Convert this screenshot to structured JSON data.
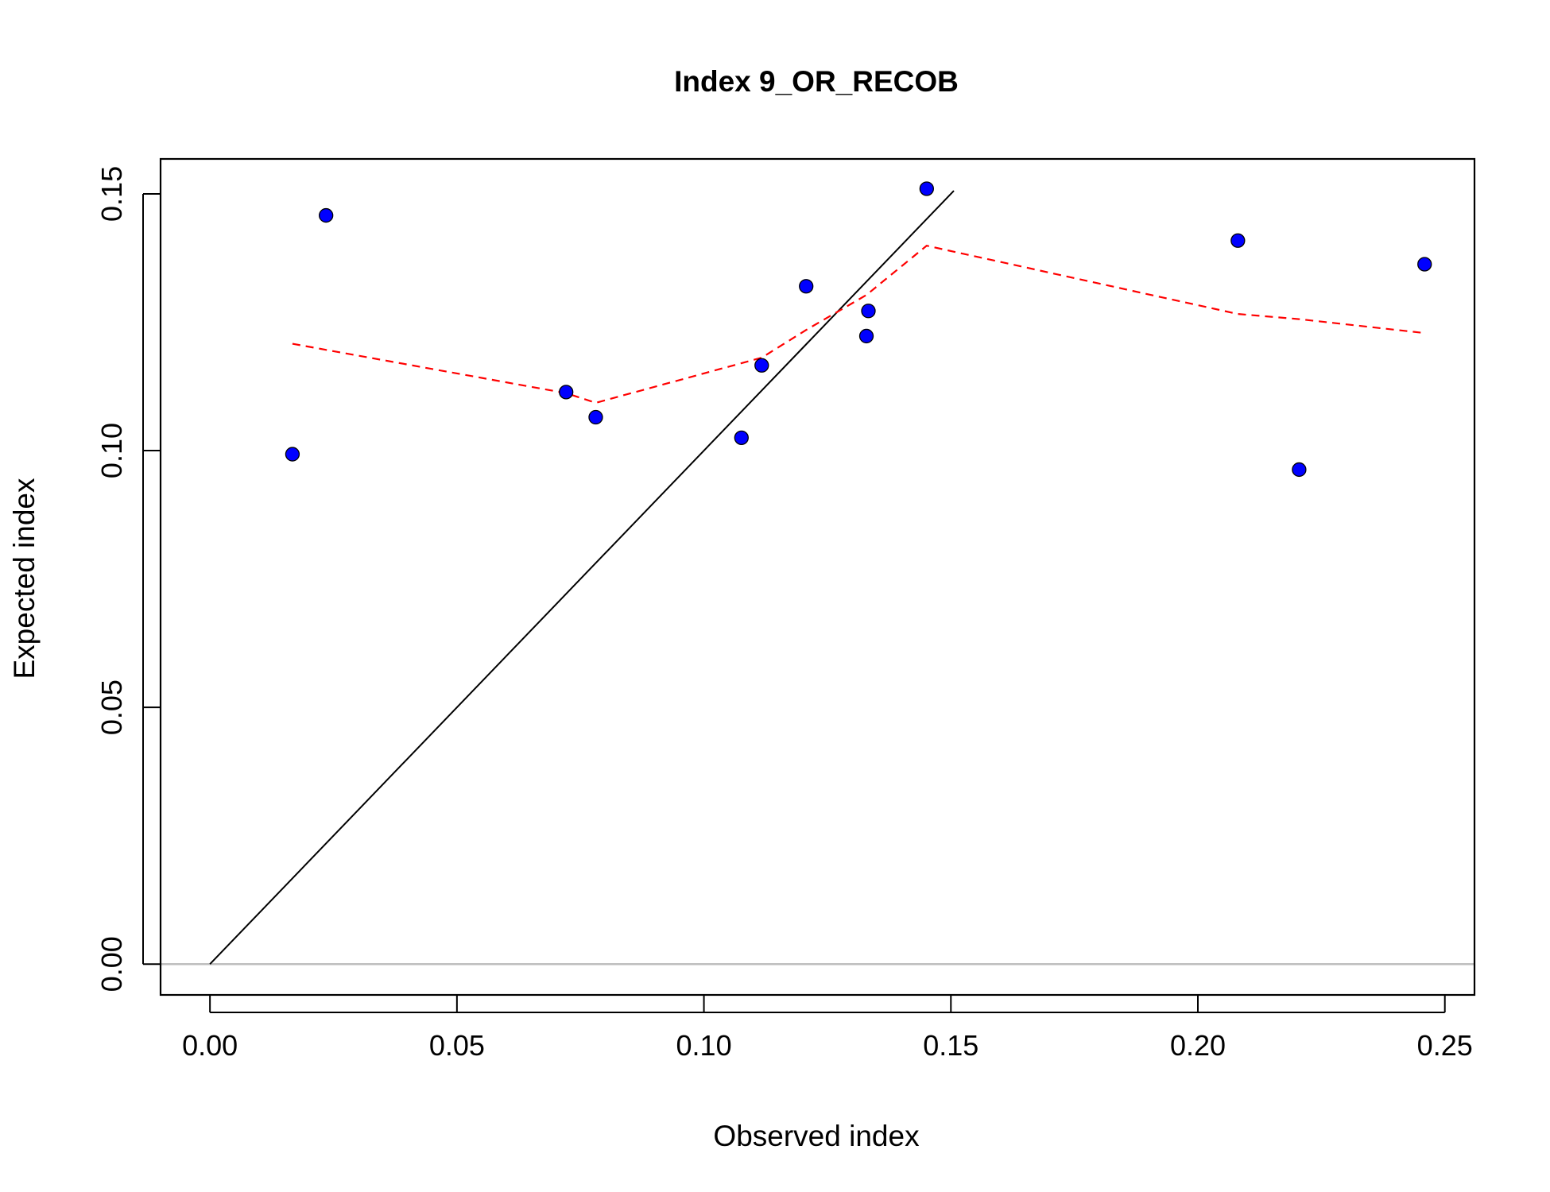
{
  "chart_data": {
    "type": "scatter",
    "title": "Index 9_OR_RECOB",
    "xlabel": "Observed index",
    "ylabel": "Expected index",
    "xlim": [
      -0.01,
      0.256
    ],
    "ylim": [
      -0.006,
      0.1568
    ],
    "x_ticks": [
      0.0,
      0.05,
      0.1,
      0.15,
      0.2,
      0.25
    ],
    "x_tick_labels": [
      "0.00",
      "0.05",
      "0.10",
      "0.15",
      "0.20",
      "0.25"
    ],
    "y_ticks": [
      0.0,
      0.05,
      0.1,
      0.15
    ],
    "y_tick_labels": [
      "0.00",
      "0.05",
      "0.10",
      "0.15"
    ],
    "grid": false,
    "points": {
      "x": [
        0.0167,
        0.0235,
        0.0721,
        0.0781,
        0.1076,
        0.1117,
        0.1207,
        0.1329,
        0.1333,
        0.1451,
        0.2081,
        0.2205,
        0.2459
      ],
      "y": [
        0.0993,
        0.1458,
        0.1114,
        0.1065,
        0.1025,
        0.1166,
        0.132,
        0.1223,
        0.1272,
        0.151,
        0.1409,
        0.0963,
        0.1363
      ],
      "color": "#0000ff",
      "edge_color": "#000000"
    },
    "identity_line": {
      "x": [
        0.0,
        0.1506
      ],
      "y": [
        0.0,
        0.1506
      ],
      "color": "#000000"
    },
    "fit_line": {
      "x": [
        0.0167,
        0.0721,
        0.0781,
        0.1117,
        0.1207,
        0.1329,
        0.1451,
        0.2081,
        0.2205,
        0.2459
      ],
      "y": [
        0.1208,
        0.1112,
        0.1093,
        0.1181,
        0.1235,
        0.1303,
        0.1399,
        0.1266,
        0.1256,
        0.1229
      ],
      "color": "#ff0000",
      "style": "dashed"
    },
    "zero_line": {
      "y": 0.0,
      "color": "#bebebe"
    }
  }
}
